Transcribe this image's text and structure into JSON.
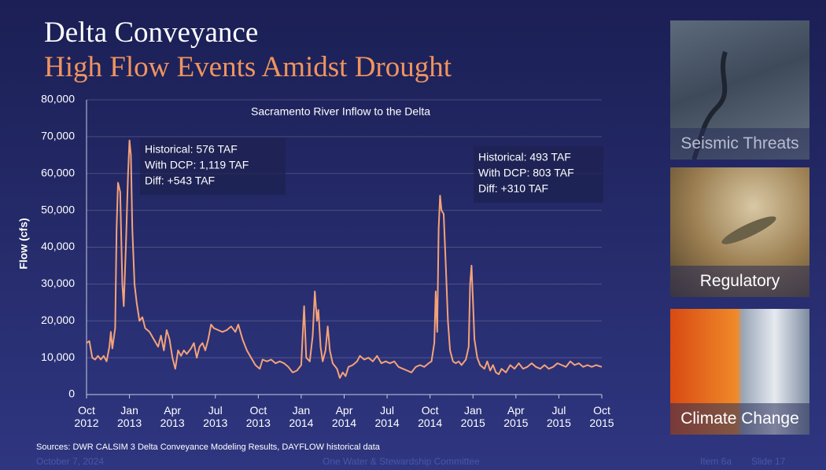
{
  "slide": {
    "title": "Delta Conveyance",
    "subtitle": "High Flow Events Amidst Drought",
    "panels": [
      "Seismic Threats",
      "Regulatory",
      "Climate Change"
    ],
    "source": "Sources: DWR CALSIM 3 Delta Conveyance Modeling Results, DAYFLOW historical data",
    "footer": {
      "date": "October 7, 2024",
      "committee": "One Water & Stewardship Committee",
      "item": "Item 6a",
      "slide": "Slide 17"
    }
  },
  "chart_data": {
    "type": "line",
    "title": "Sacramento River Inflow to the Delta",
    "y_label": "Flow (cfs)",
    "color": "#f4a27a",
    "grid": true,
    "xlim": [
      0,
      36
    ],
    "xticks": [
      {
        "value": 0,
        "label": "Oct 2012"
      },
      {
        "value": 3,
        "label": "Jan 2013"
      },
      {
        "value": 6,
        "label": "Apr 2013"
      },
      {
        "value": 9,
        "label": "Jul 2013"
      },
      {
        "value": 12,
        "label": "Oct 2013"
      },
      {
        "value": 15,
        "label": "Jan 2014"
      },
      {
        "value": 18,
        "label": "Apr 2014"
      },
      {
        "value": 21,
        "label": "Jul 2014"
      },
      {
        "value": 24,
        "label": "Oct 2014"
      },
      {
        "value": 27,
        "label": "Jan 2015"
      },
      {
        "value": 30,
        "label": "Apr 2015"
      },
      {
        "value": 33,
        "label": "Jul 2015"
      },
      {
        "value": 36,
        "label": "Oct 2015"
      }
    ],
    "ylim": [
      0,
      80000
    ],
    "yticks": [
      0,
      {
        "value": 10000,
        "label": "10,000"
      },
      {
        "value": 20000,
        "label": "20,000"
      },
      {
        "value": 30000,
        "label": "30,000"
      },
      {
        "value": 40000,
        "label": "40,000"
      },
      {
        "value": 50000,
        "label": "50,000"
      },
      {
        "value": 60000,
        "label": "60,000"
      },
      {
        "value": 70000,
        "label": "70,000"
      },
      {
        "value": 80000,
        "label": "80,000"
      }
    ],
    "annotations": [
      [
        "Historical: 576 TAF",
        "With DCP: 1,119 TAF",
        "Diff: +543 TAF"
      ],
      [
        "Historical: 493 TAF",
        "With DCP: 803 TAF",
        "Diff: +310 TAF"
      ]
    ],
    "x": [
      0,
      0.2,
      0.4,
      0.6,
      0.8,
      1.0,
      1.2,
      1.4,
      1.6,
      1.7,
      1.8,
      2.0,
      2.1,
      2.2,
      2.35,
      2.5,
      2.6,
      2.75,
      2.9,
      3.0,
      3.1,
      3.2,
      3.35,
      3.5,
      3.7,
      3.9,
      4.1,
      4.4,
      4.7,
      5.0,
      5.2,
      5.4,
      5.6,
      5.8,
      6.0,
      6.2,
      6.4,
      6.6,
      6.8,
      7.0,
      7.3,
      7.5,
      7.7,
      7.9,
      8.1,
      8.3,
      8.5,
      8.7,
      8.9,
      9.2,
      9.5,
      9.8,
      10.1,
      10.4,
      10.6,
      10.9,
      11.2,
      11.5,
      11.8,
      12.1,
      12.3,
      12.6,
      12.9,
      13.2,
      13.5,
      13.8,
      14.1,
      14.4,
      14.7,
      15.0,
      15.2,
      15.35,
      15.6,
      15.8,
      15.95,
      16.1,
      16.2,
      16.35,
      16.5,
      16.7,
      16.85,
      17.0,
      17.2,
      17.5,
      17.7,
      17.9,
      18.1,
      18.3,
      18.6,
      18.9,
      19.1,
      19.4,
      19.7,
      20.0,
      20.3,
      20.6,
      20.9,
      21.2,
      21.5,
      21.8,
      22.1,
      22.4,
      22.7,
      23.0,
      23.3,
      23.6,
      23.9,
      24.1,
      24.3,
      24.4,
      24.5,
      24.6,
      24.7,
      24.8,
      24.95,
      25.1,
      25.25,
      25.4,
      25.6,
      25.8,
      26.0,
      26.2,
      26.5,
      26.7,
      26.8,
      26.9,
      27.0,
      27.1,
      27.3,
      27.5,
      27.8,
      28.0,
      28.2,
      28.4,
      28.6,
      28.8,
      29.0,
      29.3,
      29.6,
      29.9,
      30.2,
      30.5,
      30.8,
      31.1,
      31.4,
      31.7,
      32.0,
      32.3,
      32.6,
      32.9,
      33.2,
      33.5,
      33.8,
      34.1,
      34.4,
      34.7,
      35.0,
      35.3,
      35.6,
      36.0
    ],
    "values": [
      14000,
      14500,
      10000,
      9500,
      10500,
      9500,
      10500,
      9000,
      13000,
      17000,
      12500,
      18000,
      45000,
      57500,
      55000,
      30000,
      24000,
      40000,
      60000,
      69000,
      65000,
      45000,
      30000,
      25000,
      20000,
      21000,
      18000,
      17000,
      15000,
      13000,
      16000,
      12000,
      17500,
      15000,
      10000,
      7000,
      12000,
      10500,
      12000,
      11000,
      12500,
      14000,
      10000,
      13000,
      14000,
      12000,
      15000,
      19000,
      18000,
      17500,
      17000,
      17500,
      18500,
      17000,
      19000,
      15000,
      12000,
      10000,
      8000,
      7000,
      9500,
      9000,
      9500,
      8500,
      9000,
      8500,
      7500,
      6000,
      6500,
      8000,
      24000,
      10000,
      9000,
      16000,
      28000,
      20000,
      23000,
      13000,
      9000,
      12000,
      18500,
      12000,
      8500,
      7000,
      4500,
      6000,
      5000,
      7500,
      8000,
      9000,
      10500,
      9500,
      10000,
      9000,
      10500,
      8500,
      9000,
      8500,
      9000,
      7500,
      7000,
      6500,
      6000,
      7500,
      8000,
      7500,
      8500,
      9000,
      14000,
      28000,
      17000,
      45000,
      54000,
      50000,
      49000,
      35000,
      20000,
      12000,
      9000,
      8500,
      9000,
      8000,
      9500,
      13000,
      30000,
      35000,
      25000,
      15000,
      10000,
      8000,
      7000,
      9000,
      6500,
      8000,
      6000,
      5500,
      7000,
      6000,
      8000,
      7000,
      8500,
      7000,
      7500,
      8500,
      7500,
      7000,
      8000,
      7000,
      7500,
      8500,
      8000,
      7500,
      9000,
      8000,
      8500,
      7500,
      8000,
      7500,
      8000,
      7500
    ]
  }
}
